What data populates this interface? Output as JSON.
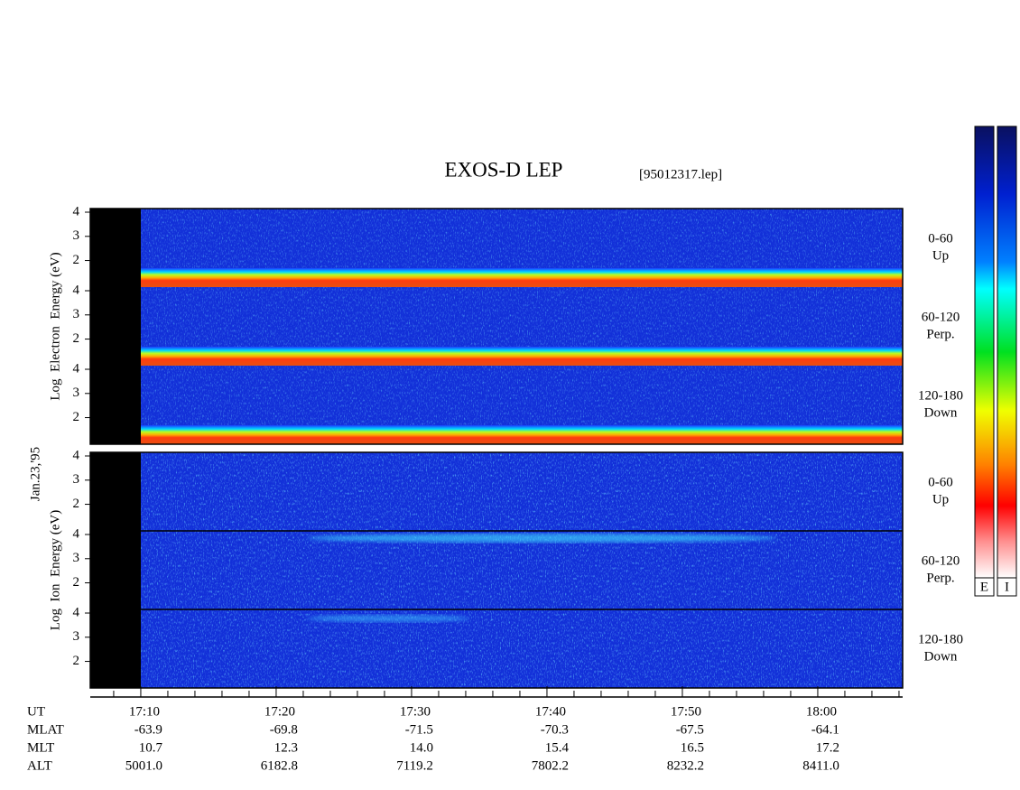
{
  "chart_data": {
    "type": "spectrogram",
    "title": "EXOS-D LEP",
    "file_label": "[95012317.lep]",
    "date_label": "Jan.23,'95",
    "panels": [
      {
        "y_label": "Log  Electron  Energy (eV)",
        "kind": "electron",
        "subpanels": [
          {
            "lines": [
              "0-60",
              "Up"
            ]
          },
          {
            "lines": [
              "60-120",
              "Perp."
            ]
          },
          {
            "lines": [
              "120-180",
              "Down"
            ]
          }
        ]
      },
      {
        "y_label": "Log  Ion  Energy (eV)",
        "kind": "ion",
        "subpanels": [
          {
            "lines": [
              "0-60",
              "Up"
            ]
          },
          {
            "lines": [
              "60-120",
              "Perp."
            ]
          },
          {
            "lines": [
              "120-180",
              "Down"
            ]
          }
        ]
      }
    ],
    "ylim": [
      0.9,
      4.15
    ],
    "yticks": [
      2,
      3,
      4
    ],
    "xlim": [
      1026.27,
      1086.27
    ],
    "xticks": [
      {
        "value": 1030,
        "label": "17:10"
      },
      {
        "value": 1040,
        "label": "17:20"
      },
      {
        "value": 1050,
        "label": "17:30"
      },
      {
        "value": 1060,
        "label": "17:40"
      },
      {
        "value": 1070,
        "label": "17:50"
      },
      {
        "value": 1080,
        "label": "18:00"
      }
    ],
    "xminorticks": [
      1028,
      1032,
      1034,
      1036,
      1038,
      1042,
      1044,
      1046,
      1048,
      1052,
      1054,
      1056,
      1058,
      1062,
      1064,
      1066,
      1068,
      1072,
      1074,
      1076,
      1078,
      1082,
      1084,
      1086
    ],
    "x_row_label": "UT",
    "rows": [
      {
        "label": "MLAT",
        "values": [
          "-63.9",
          "-69.8",
          "-71.5",
          "-70.3",
          "-67.5",
          "-64.1"
        ]
      },
      {
        "label": "MLT",
        "values": [
          "10.7",
          "12.3",
          "14.0",
          "15.4",
          "16.5",
          "17.2"
        ]
      },
      {
        "label": "ALT",
        "values": [
          "5001.0",
          "6182.8",
          "7119.2",
          "7802.2",
          "8232.2",
          "8411.0"
        ]
      }
    ],
    "colorbar_labels": [
      "E",
      "I"
    ]
  }
}
